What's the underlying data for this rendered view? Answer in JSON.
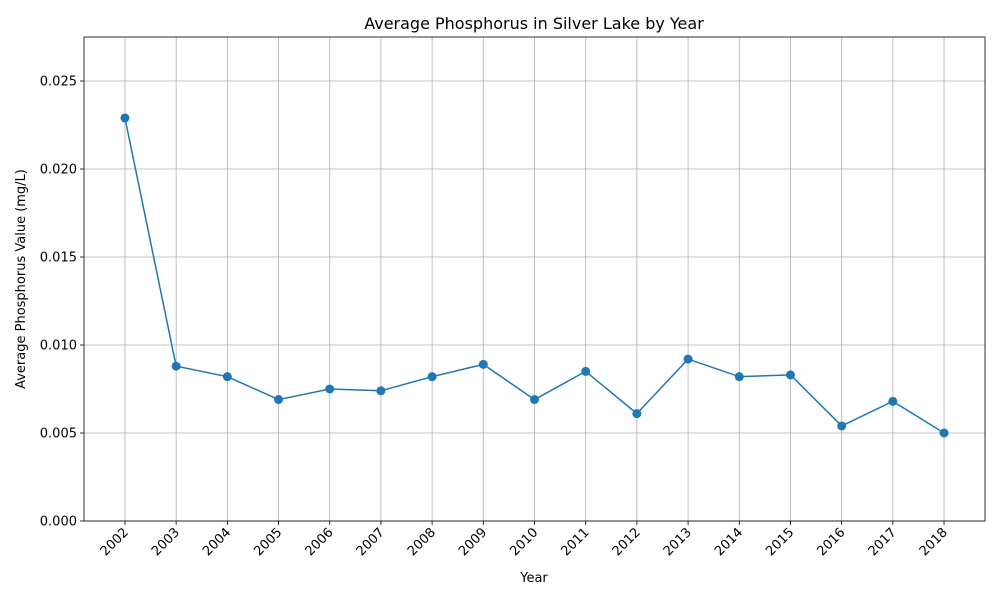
{
  "chart_data": {
    "type": "line",
    "title": "Average Phosphorus in Silver Lake by Year",
    "xlabel": "Year",
    "ylabel": "Average Phosphorus Value (mg/L)",
    "categories": [
      "2002",
      "2003",
      "2004",
      "2005",
      "2006",
      "2007",
      "2008",
      "2009",
      "2010",
      "2011",
      "2012",
      "2013",
      "2014",
      "2015",
      "2016",
      "2017",
      "2018"
    ],
    "series": [
      {
        "values": [
          0.0229,
          0.0088,
          0.0082,
          0.0069,
          0.0075,
          0.0074,
          0.0082,
          0.0089,
          0.0069,
          0.0085,
          0.0061,
          0.0092,
          0.0082,
          0.0083,
          0.0054,
          0.0068,
          0.005
        ],
        "color": "#1f77b4",
        "marker": "circle"
      }
    ],
    "ylim": [
      0,
      0.0275
    ],
    "yticks": [
      "0.000",
      "0.005",
      "0.010",
      "0.015",
      "0.020",
      "0.025"
    ],
    "grid": true,
    "x_tick_rotation": "45-degree"
  }
}
